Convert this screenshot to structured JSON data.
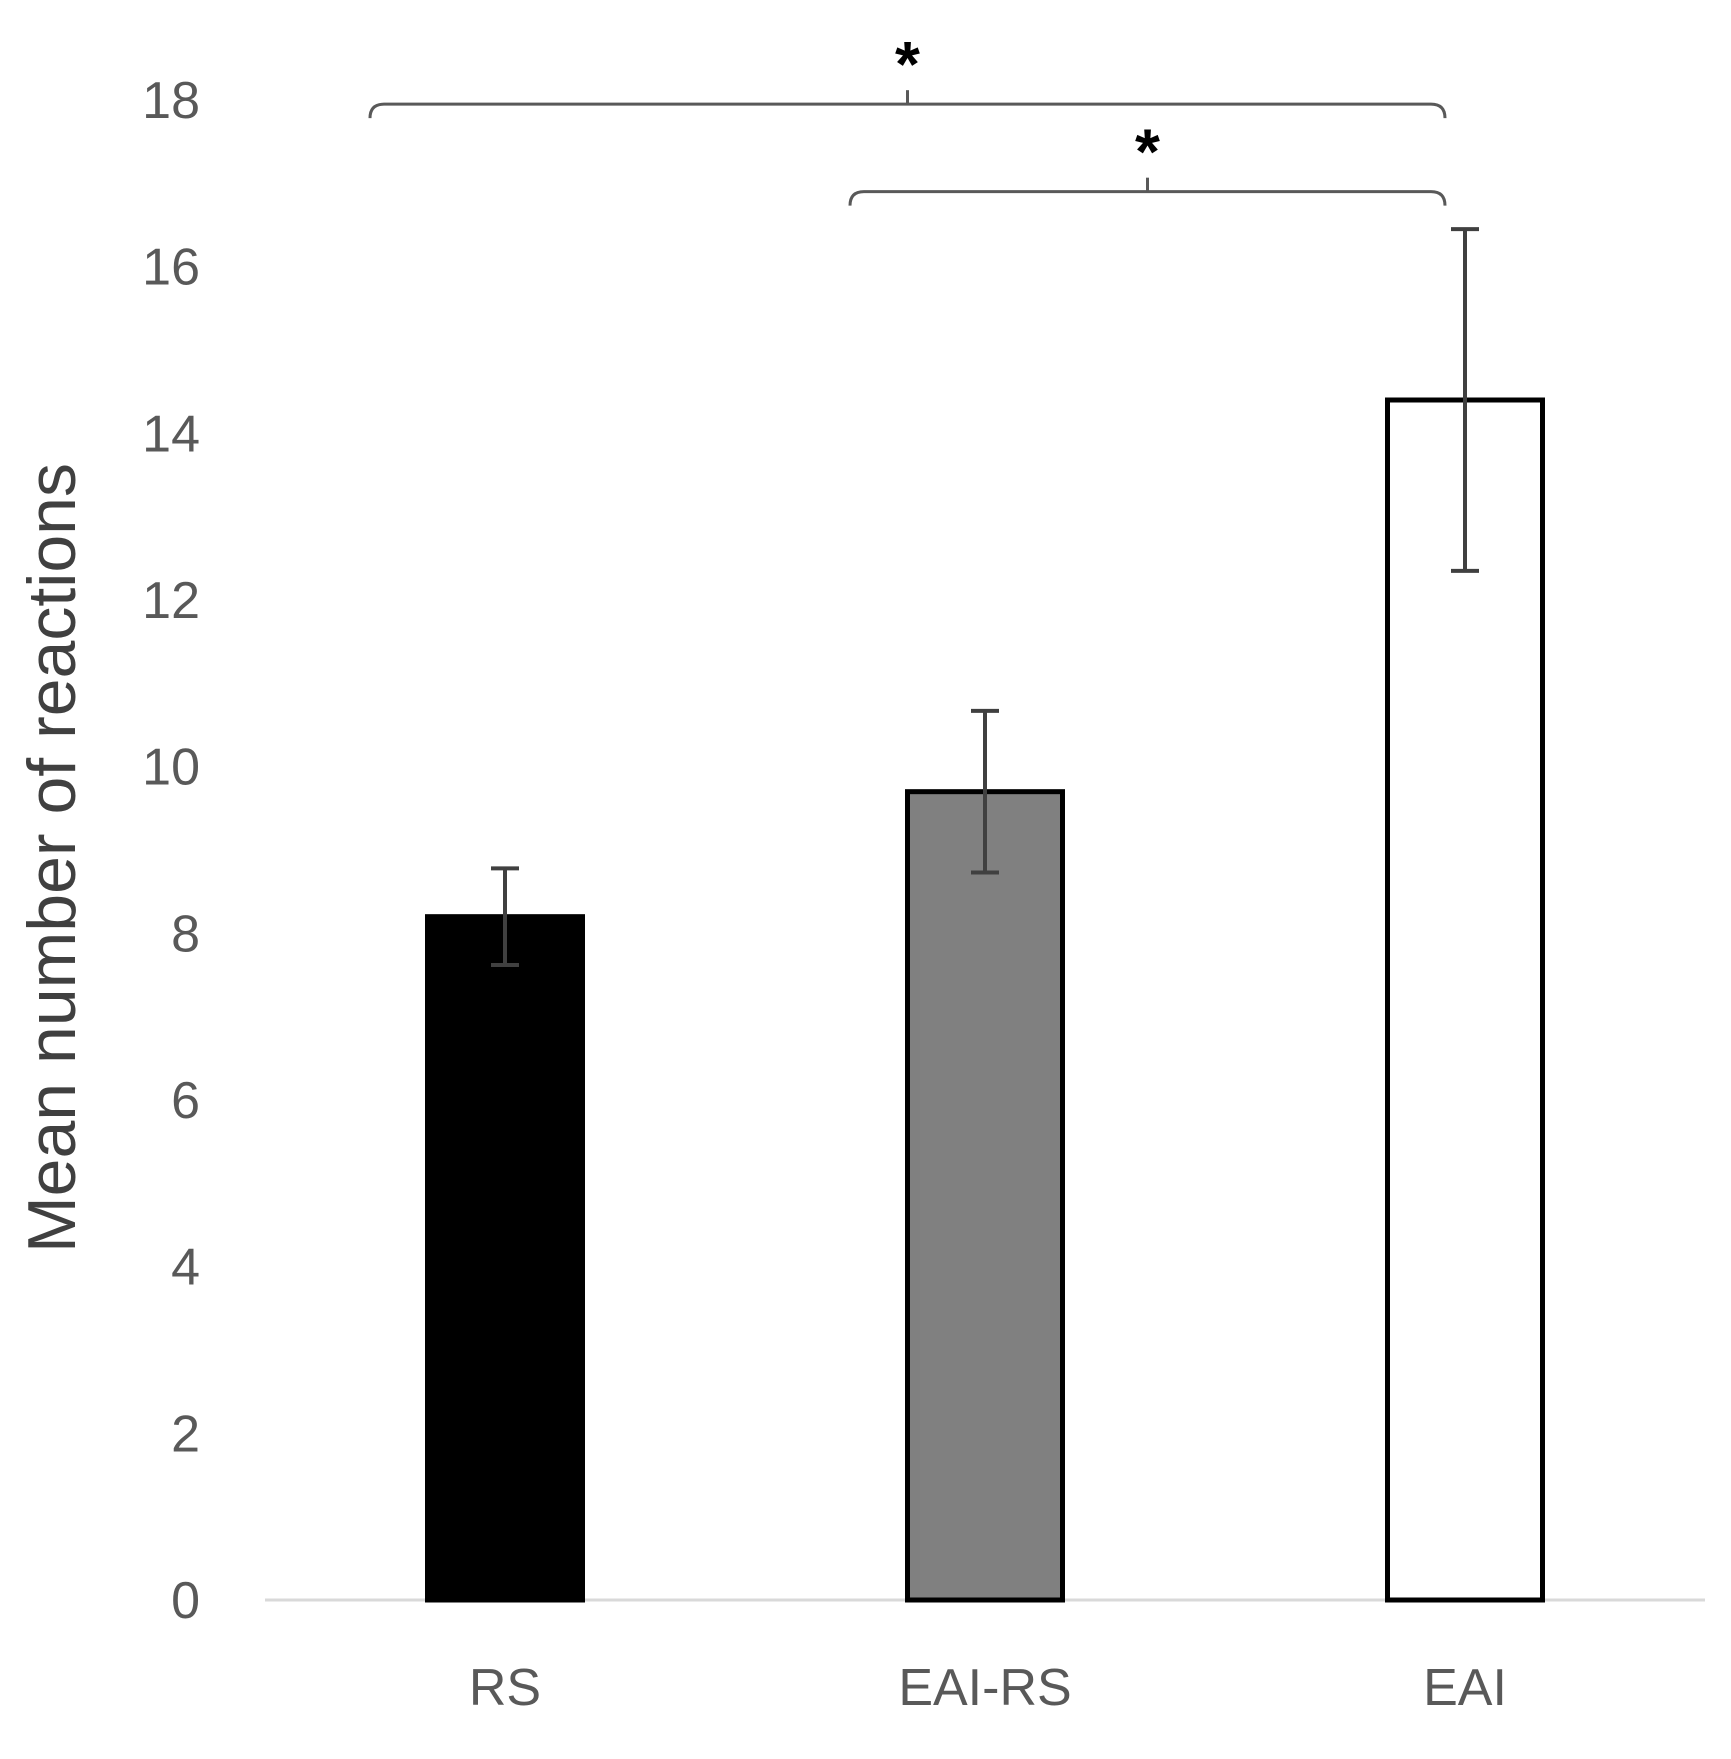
{
  "chart_data": {
    "type": "bar",
    "title": "",
    "xlabel": "",
    "ylabel": "Mean number of reactions",
    "ylim": [
      0,
      18
    ],
    "yticks": [
      0,
      2,
      4,
      6,
      8,
      10,
      12,
      14,
      16,
      18
    ],
    "grid": false,
    "categories": [
      "RS",
      "EAI-RS",
      "EAI"
    ],
    "values": [
      8.2,
      9.7,
      14.4
    ],
    "error": [
      0.58,
      0.97,
      2.05
    ],
    "bar_colors": [
      "#000000",
      "#808080",
      "#ffffff"
    ],
    "bar_edge_color": "#000000",
    "error_bar_color": "#404040",
    "axis_color": "#d9d9d9",
    "significance": [
      {
        "from": "RS",
        "to": "EAI",
        "y": 17.95,
        "label": "*"
      },
      {
        "from": "EAI-RS",
        "to": "EAI",
        "y": 16.9,
        "label": "*"
      }
    ]
  }
}
